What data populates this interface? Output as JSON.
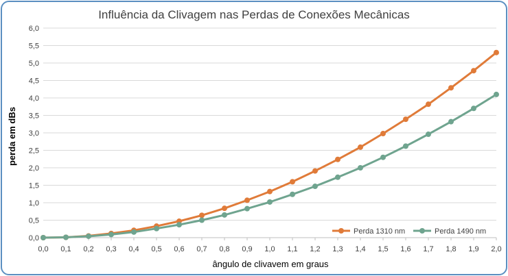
{
  "chart_data": {
    "type": "line",
    "title": "Influência da Clivagem nas Perdas de Conexões Mecânicas",
    "xlabel": "ângulo de clivavem em graus",
    "ylabel": "perda em dBs",
    "x": [
      0.0,
      0.1,
      0.2,
      0.3,
      0.4,
      0.5,
      0.6,
      0.7,
      0.8,
      0.9,
      1.0,
      1.1,
      1.2,
      1.3,
      1.4,
      1.5,
      1.6,
      1.7,
      1.8,
      1.9,
      2.0
    ],
    "x_tick_labels": [
      "0,0",
      "0,1",
      "0,2",
      "0,3",
      "0,4",
      "0,5",
      "0,6",
      "0,7",
      "0,8",
      "0,9",
      "1,0",
      "1,1",
      "1,2",
      "1,3",
      "1,4",
      "1,5",
      "1,6",
      "1,7",
      "1,8",
      "1,9",
      "2,0"
    ],
    "ylim": [
      0,
      6
    ],
    "y_ticks": [
      0,
      0.5,
      1,
      1.5,
      2,
      2.5,
      3,
      3.5,
      4,
      4.5,
      5,
      5.5,
      6
    ],
    "y_tick_labels": [
      "0,0",
      "0,5",
      "1,0",
      "1,5",
      "2,0",
      "2,5",
      "3,0",
      "3,5",
      "4,0",
      "4,5",
      "5,0",
      "5,5",
      "6,0"
    ],
    "grid": "horizontal",
    "legend_position": "bottom-right",
    "series": [
      {
        "name": "Perda 1310 nm",
        "color": "#e07b39",
        "values": [
          0.0,
          0.01,
          0.05,
          0.12,
          0.21,
          0.33,
          0.47,
          0.64,
          0.84,
          1.07,
          1.32,
          1.6,
          1.91,
          2.24,
          2.59,
          2.98,
          3.39,
          3.82,
          4.29,
          4.78,
          5.3
        ]
      },
      {
        "name": "Perda 1490 nm",
        "color": "#6fa48f",
        "values": [
          0.0,
          0.01,
          0.04,
          0.09,
          0.16,
          0.26,
          0.37,
          0.5,
          0.65,
          0.83,
          1.02,
          1.24,
          1.47,
          1.73,
          2.0,
          2.3,
          2.62,
          2.96,
          3.32,
          3.7,
          4.1
        ]
      }
    ]
  }
}
